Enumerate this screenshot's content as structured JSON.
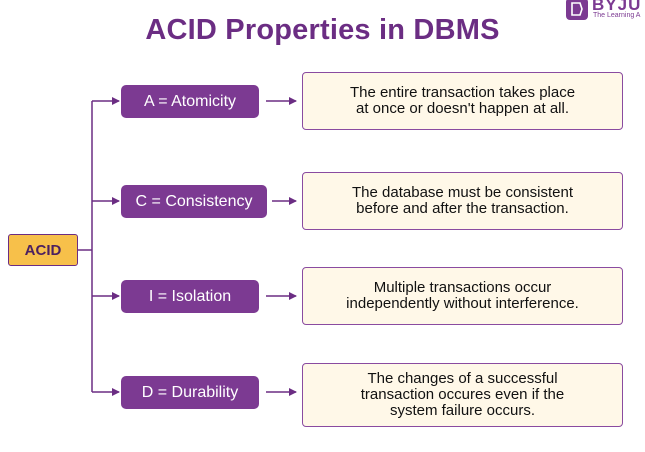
{
  "title": "ACID Properties in DBMS",
  "logo": {
    "word": "BYJU",
    "subtitle": "The Learning A"
  },
  "root_label": "ACID",
  "properties": [
    {
      "label": "A = Atomicity",
      "description": "The entire transaction takes place\nat once or doesn't happen at all."
    },
    {
      "label": "C = Consistency",
      "description": "The database must be consistent\nbefore and after the transaction."
    },
    {
      "label": "I = Isolation",
      "description": "Multiple transactions occur\nindependently without interference."
    },
    {
      "label": "D = Durability",
      "description": "The changes of a successful\ntransaction occures even if the\nsystem failure occurs."
    }
  ],
  "colors": {
    "primary": "#7c3a92",
    "title": "#6b2d83",
    "root_fill": "#f7c04a",
    "desc_fill": "#fff8e8",
    "line": "#6b2d83"
  }
}
